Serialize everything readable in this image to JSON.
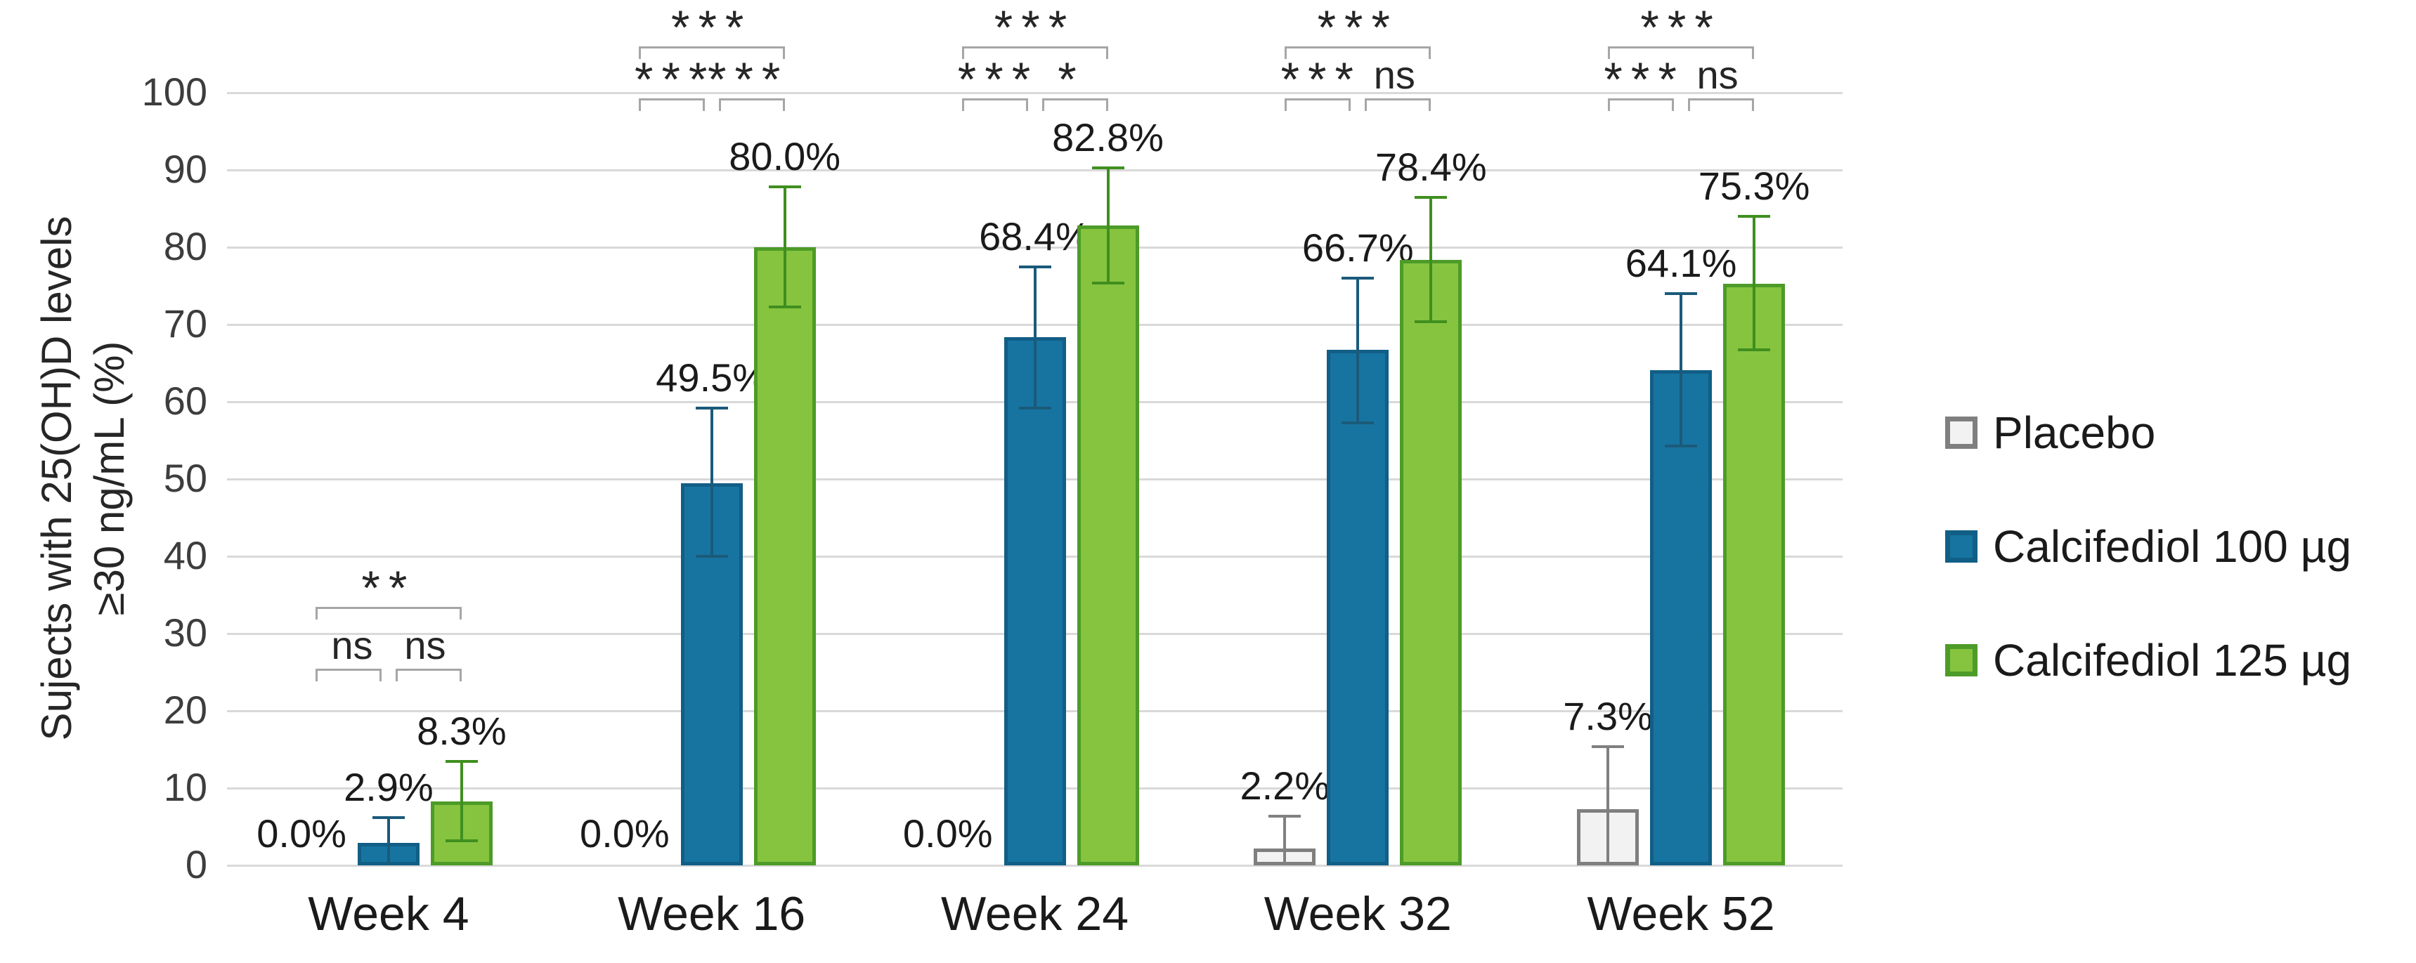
{
  "chart_data": {
    "type": "bar",
    "title": "",
    "y_axis": {
      "label_lines": [
        "Sujects with 25(OH)D levels",
        "≥30 ng/mL (%)"
      ],
      "min": 0,
      "max": 100,
      "tick_step": 10,
      "ticks": [
        0,
        10,
        20,
        30,
        40,
        50,
        60,
        70,
        80,
        90,
        100
      ],
      "grid": "horizontal"
    },
    "categories": [
      "Week 4",
      "Week 16",
      "Week 24",
      "Week 32",
      "Week 52"
    ],
    "series": [
      {
        "name": "Placebo",
        "fill": "#f2f2f2",
        "border_color": "#7f7f7f",
        "error_color": "#808080",
        "values": [
          0.0,
          0.0,
          0.0,
          2.2,
          7.3
        ],
        "value_labels": [
          "0.0%",
          "0.0%",
          "0.0%",
          "2.2%",
          "7.3%"
        ],
        "err_up": [
          null,
          null,
          null,
          4.2,
          8.1
        ],
        "err_down": [
          null,
          null,
          null,
          2.2,
          7.3
        ]
      },
      {
        "name": "Calcifediol 100 µg",
        "fill": "#1774a0",
        "border_color": "#115e86",
        "error_color": "#1b5a7a",
        "values": [
          2.9,
          49.5,
          68.4,
          66.7,
          64.1
        ],
        "value_labels": [
          "2.9%",
          "49.5%",
          "68.4%",
          "66.7%",
          "64.1%"
        ],
        "err_up": [
          3.3,
          9.7,
          9.1,
          9.3,
          9.9
        ],
        "err_down": [
          2.9,
          9.5,
          9.2,
          9.4,
          9.8
        ]
      },
      {
        "name": "Calcifediol 125 µg",
        "fill": "#86c43f",
        "border_color": "#4d9b28",
        "error_color": "#3f8f1f",
        "values": [
          8.3,
          80.0,
          82.8,
          78.4,
          75.3
        ],
        "value_labels": [
          "8.3%",
          "80.0%",
          "82.8%",
          "78.4%",
          "75.3%"
        ],
        "err_up": [
          5.2,
          7.8,
          7.5,
          8.1,
          8.7
        ],
        "err_down": [
          5.1,
          7.7,
          7.4,
          8.0,
          8.6
        ]
      }
    ],
    "significance": [
      {
        "category": "Week 4",
        "outer_label": "**",
        "left_label": "ns",
        "right_label": "ns",
        "outer_y": 33.5,
        "inner_y": 25.5
      },
      {
        "category": "Week 16",
        "outer_label": "***",
        "left_label": "***",
        "right_label": "***",
        "outer_y": 106,
        "inner_y": 99.3
      },
      {
        "category": "Week 24",
        "outer_label": "***",
        "left_label": "***",
        "right_label": "*",
        "outer_y": 106,
        "inner_y": 99.3
      },
      {
        "category": "Week 32",
        "outer_label": "***",
        "left_label": "***",
        "right_label": "ns",
        "outer_y": 106,
        "inner_y": 99.3
      },
      {
        "category": "Week 52",
        "outer_label": "***",
        "left_label": "***",
        "right_label": "ns",
        "outer_y": 106,
        "inner_y": 99.3
      }
    ],
    "legend": {
      "position": "right",
      "items": [
        "Placebo",
        "Calcifediol 100 µg",
        "Calcifediol 125 µg"
      ]
    }
  }
}
